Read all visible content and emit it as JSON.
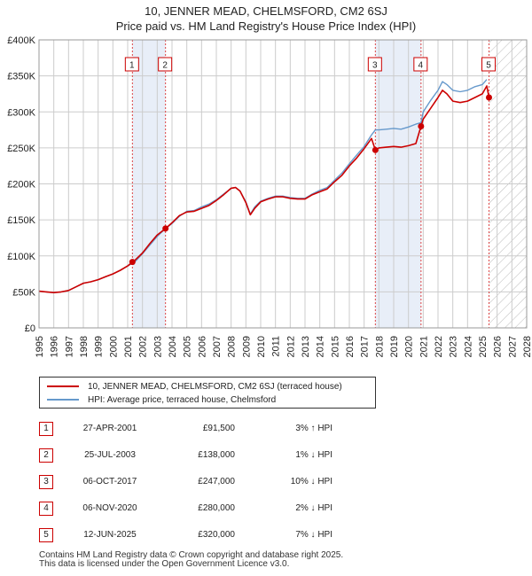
{
  "title_line1": "10, JENNER MEAD, CHELMSFORD, CM2 6SJ",
  "title_line2": "Price paid vs. HM Land Registry's House Price Index (HPI)",
  "legend": {
    "property_label": "10, JENNER MEAD, CHELMSFORD, CM2 6SJ (terraced house)",
    "hpi_label": "HPI: Average price, terraced house, Chelmsford"
  },
  "sales": [
    {
      "num": "1",
      "date": "27-APR-2001",
      "price": "£91,500",
      "hpi": "3% ↑ HPI"
    },
    {
      "num": "2",
      "date": "25-JUL-2003",
      "price": "£138,000",
      "hpi": "1% ↓ HPI"
    },
    {
      "num": "3",
      "date": "06-OCT-2017",
      "price": "£247,000",
      "hpi": "10% ↓ HPI"
    },
    {
      "num": "4",
      "date": "06-NOV-2020",
      "price": "£280,000",
      "hpi": "2% ↓ HPI"
    },
    {
      "num": "5",
      "date": "12-JUN-2025",
      "price": "£320,000",
      "hpi": "7% ↓ HPI"
    }
  ],
  "footer": {
    "line1": "Contains HM Land Registry data © Crown copyright and database right 2025.",
    "line2": "This data is licensed under the Open Government Licence v3.0."
  },
  "colors": {
    "property": "#cc0000",
    "hpi": "#6699cc",
    "shade": "#e8eef8",
    "grid": "#cccccc"
  },
  "chart_data": {
    "type": "line",
    "xlim": [
      1995,
      2028
    ],
    "ylim": [
      0,
      400000
    ],
    "x_ticks": [
      1995,
      1996,
      1997,
      1998,
      1999,
      2000,
      2001,
      2002,
      2003,
      2004,
      2005,
      2006,
      2007,
      2008,
      2009,
      2010,
      2011,
      2012,
      2013,
      2014,
      2015,
      2016,
      2017,
      2018,
      2019,
      2020,
      2021,
      2022,
      2023,
      2024,
      2025,
      2026,
      2027,
      2028
    ],
    "y_ticks": [
      0,
      50000,
      100000,
      150000,
      200000,
      250000,
      300000,
      350000,
      400000
    ],
    "y_tick_labels": [
      "£0",
      "£50K",
      "£100K",
      "£150K",
      "£200K",
      "£250K",
      "£300K",
      "£350K",
      "£400K"
    ],
    "shaded_periods": [
      [
        2001.32,
        2003.56
      ],
      [
        2017.76,
        2020.85
      ]
    ],
    "hatched_from": 2025.45,
    "sale_markers": [
      {
        "label": "1",
        "x": 2001.32,
        "y": 91500
      },
      {
        "label": "2",
        "x": 2003.56,
        "y": 138000
      },
      {
        "label": "3",
        "x": 2017.76,
        "y": 247000
      },
      {
        "label": "4",
        "x": 2020.85,
        "y": 280000
      },
      {
        "label": "5",
        "x": 2025.45,
        "y": 320000
      }
    ],
    "series": [
      {
        "name": "HPI: Average price, terraced house, Chelmsford",
        "x": [
          1995,
          1995.5,
          1996,
          1996.5,
          1997,
          1997.5,
          1998,
          1998.5,
          1999,
          1999.5,
          2000,
          2000.5,
          2001,
          2001.5,
          2002,
          2002.5,
          2003,
          2003.5,
          2004,
          2004.5,
          2005,
          2005.5,
          2006,
          2006.5,
          2007,
          2007.5,
          2008,
          2008.3,
          2008.6,
          2009,
          2009.3,
          2009.6,
          2010,
          2010.5,
          2011,
          2011.5,
          2012,
          2012.5,
          2013,
          2013.5,
          2014,
          2014.5,
          2015,
          2015.5,
          2016,
          2016.5,
          2017,
          2017.5,
          2017.76,
          2018,
          2018.5,
          2019,
          2019.5,
          2020,
          2020.5,
          2020.85,
          2021,
          2021.5,
          2022,
          2022.3,
          2022.6,
          2023,
          2023.5,
          2024,
          2024.5,
          2025,
          2025.3
        ],
        "y": [
          51000,
          50000,
          49000,
          50000,
          52000,
          57000,
          62000,
          64000,
          67000,
          71000,
          75000,
          80000,
          86000,
          92000,
          103000,
          115000,
          127000,
          137000,
          145000,
          155000,
          162000,
          163000,
          168000,
          172000,
          178000,
          186000,
          194000,
          195000,
          190000,
          175000,
          158000,
          168000,
          176000,
          180000,
          183000,
          183000,
          181000,
          180000,
          180000,
          186000,
          191000,
          195000,
          205000,
          215000,
          228000,
          240000,
          252000,
          268000,
          275000,
          275000,
          276000,
          277000,
          276000,
          279000,
          283000,
          285000,
          300000,
          316000,
          330000,
          342000,
          338000,
          330000,
          328000,
          330000,
          335000,
          338000,
          345000
        ]
      },
      {
        "name": "10, JENNER MEAD, CHELMSFORD, CM2 6SJ (terraced house)",
        "x": [
          1995,
          1995.5,
          1996,
          1996.5,
          1997,
          1997.5,
          1998,
          1998.5,
          1999,
          1999.5,
          2000,
          2000.5,
          2001,
          2001.32,
          2001.5,
          2002,
          2002.5,
          2003,
          2003.56,
          2004,
          2004.5,
          2005,
          2005.5,
          2006,
          2006.5,
          2007,
          2007.5,
          2008,
          2008.3,
          2008.6,
          2009,
          2009.3,
          2009.6,
          2010,
          2010.5,
          2011,
          2011.5,
          2012,
          2012.5,
          2013,
          2013.5,
          2014,
          2014.5,
          2015,
          2015.5,
          2016,
          2016.5,
          2017,
          2017.5,
          2017.76,
          2018,
          2018.5,
          2019,
          2019.5,
          2020,
          2020.5,
          2020.85,
          2021,
          2021.5,
          2022,
          2022.3,
          2022.6,
          2023,
          2023.5,
          2024,
          2024.5,
          2025,
          2025.3,
          2025.45
        ],
        "y": [
          51000,
          50000,
          49000,
          50000,
          52000,
          57000,
          62000,
          64000,
          67000,
          71000,
          75000,
          80000,
          86000,
          91500,
          94000,
          104000,
          117000,
          129000,
          138000,
          146000,
          156000,
          161000,
          162000,
          166000,
          170000,
          177000,
          185000,
          194000,
          195000,
          190000,
          174000,
          157000,
          166000,
          175000,
          179000,
          182000,
          182000,
          180000,
          179000,
          179000,
          185000,
          189000,
          193000,
          203000,
          212000,
          225000,
          236000,
          249000,
          263000,
          247000,
          250000,
          251000,
          252000,
          251000,
          253000,
          256000,
          280000,
          290000,
          305000,
          320000,
          330000,
          325000,
          315000,
          313000,
          315000,
          320000,
          325000,
          336000,
          320000
        ]
      }
    ]
  }
}
